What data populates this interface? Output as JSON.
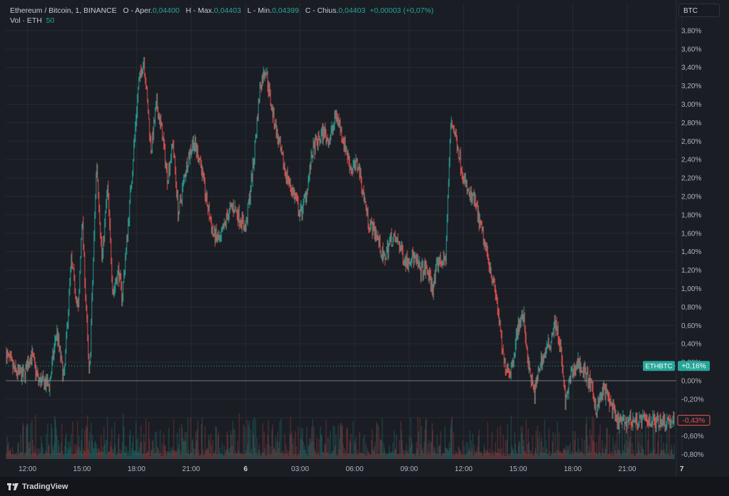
{
  "legend": {
    "symbol": "Ethereum / Bitcoin, 1, BINANCE",
    "open_label": "O - Aper.",
    "open_value": "0,04400",
    "high_label": "H - Max.",
    "high_value": "0,04403",
    "low_label": "L - Min.",
    "low_value": "0,04399",
    "close_label": "C - Chius.",
    "close_value": "0,04403",
    "change": "+0,00003 (+0,07%)",
    "vol_label": "Vol · ETH",
    "vol_value": "50"
  },
  "currency_button": "BTC",
  "branding": "TradingView",
  "colors": {
    "background": "#1a1d24",
    "grid": "#262a33",
    "up": "#26a69a",
    "down": "#ef5350",
    "axis_text": "#b2b5be",
    "zero_line": "#9598a1"
  },
  "chart_data": {
    "type": "candlestick",
    "symbol": "ETHBTC",
    "y_unit": "percent change",
    "ylim": [
      -0.85,
      3.9
    ],
    "y_ticks": [
      "3,80%",
      "3,60%",
      "3,40%",
      "3,20%",
      "3,00%",
      "2,80%",
      "2,60%",
      "2,40%",
      "2,20%",
      "2,00%",
      "1,80%",
      "1,60%",
      "1,40%",
      "1,20%",
      "1,00%",
      "0,80%",
      "0,60%",
      "0,40%",
      "0,20%",
      "0,00%",
      "-0,20%",
      "-0,40%",
      "-0,60%",
      "-0,80%"
    ],
    "x_ticks": [
      "12:00",
      "15:00",
      "18:00",
      "21:00",
      "6",
      "03:00",
      "06:00",
      "09:00",
      "12:00",
      "15:00",
      "18:00",
      "21:00",
      "7"
    ],
    "x_range_hours": [
      10.8,
      47.7
    ],
    "x_tick_hours": [
      12,
      15,
      18,
      21,
      24,
      27,
      30,
      33,
      36,
      39,
      42,
      45,
      48
    ],
    "path_hours": [
      10.8,
      11.3,
      11.8,
      12.2,
      12.6,
      13.2,
      13.6,
      14.0,
      14.4,
      14.8,
      15.0,
      15.4,
      15.8,
      16.1,
      16.4,
      16.7,
      17.0,
      17.2,
      17.5,
      17.8,
      18.1,
      18.4,
      18.8,
      19.1,
      19.4,
      19.7,
      20.0,
      20.3,
      20.7,
      21.1,
      21.5,
      21.8,
      22.2,
      22.6,
      23.0,
      23.3,
      23.6,
      24.0,
      24.4,
      24.8,
      25.1,
      25.4,
      25.7,
      26.0,
      26.3,
      26.7,
      27.0,
      27.3,
      27.7,
      28.0,
      28.3,
      28.6,
      29.0,
      29.4,
      29.8,
      30.2,
      30.5,
      30.8,
      31.2,
      31.6,
      32.0,
      32.4,
      32.8,
      33.2,
      33.6,
      34.0,
      34.3,
      34.6,
      35.0,
      35.3,
      35.6,
      36.0,
      36.3,
      36.6,
      37.0,
      37.4,
      37.8,
      38.2,
      38.6,
      39.0,
      39.3,
      39.6,
      39.9,
      40.2,
      40.5,
      40.8,
      41.0,
      41.3,
      41.6,
      41.9,
      42.3,
      42.6,
      42.9,
      43.3,
      43.7,
      44.0,
      44.4,
      44.8,
      45.2,
      45.6,
      46.0,
      46.4,
      46.8,
      47.2,
      47.6,
      47.7
    ],
    "path_values": [
      0.3,
      0.1,
      0.05,
      0.3,
      0.0,
      -0.05,
      0.55,
      0.0,
      1.3,
      0.75,
      1.8,
      0.0,
      2.4,
      1.3,
      2.1,
      0.95,
      1.2,
      0.9,
      1.6,
      2.4,
      3.2,
      3.5,
      2.5,
      3.0,
      2.7,
      2.2,
      2.6,
      1.8,
      2.3,
      2.6,
      2.4,
      2.0,
      1.6,
      1.5,
      1.8,
      1.9,
      1.8,
      1.65,
      2.3,
      3.2,
      3.4,
      3.0,
      2.7,
      2.4,
      2.2,
      2.0,
      1.8,
      2.0,
      2.5,
      2.6,
      2.7,
      2.6,
      2.9,
      2.6,
      2.3,
      2.35,
      2.0,
      1.7,
      1.6,
      1.3,
      1.55,
      1.5,
      1.3,
      1.35,
      1.2,
      1.2,
      1.0,
      1.3,
      1.3,
      2.85,
      2.6,
      2.2,
      2.0,
      1.95,
      1.6,
      1.3,
      0.9,
      0.2,
      0.1,
      0.6,
      0.7,
      0.1,
      -0.15,
      0.2,
      0.3,
      0.45,
      0.65,
      0.4,
      -0.25,
      0.05,
      0.2,
      0.1,
      0.0,
      -0.3,
      -0.1,
      -0.2,
      -0.45,
      -0.45,
      -0.43,
      -0.43,
      -0.43,
      -0.43,
      -0.43,
      -0.43,
      -0.43,
      -0.43
    ],
    "last_price_label": "ETHBTC",
    "last_price_value": "+0,16%",
    "current_change_label": "-0,43%",
    "current_change_value": -0.43,
    "last_price_level": 0.16,
    "baseline": 0.0,
    "volume_axis_max": 1.0
  }
}
